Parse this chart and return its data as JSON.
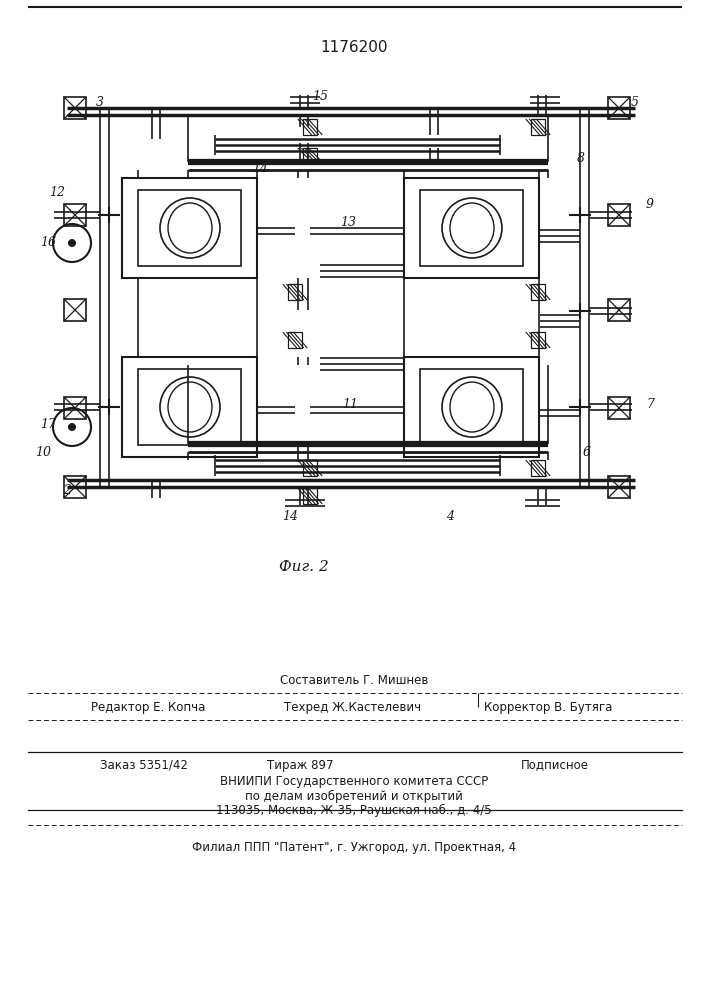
{
  "title": "1176200",
  "fig_label": "Фиг. 2",
  "bg_color": "#ffffff",
  "lc": "#1a1a1a",
  "footer": {
    "line1": "Составитель Г. Мишнев",
    "line2a": "Редактор Е. Копча",
    "line2b": "Техред Ж.Кастелевич",
    "line2c": "Корректор В. Бутяга",
    "line3a": "Заказ 5351/42",
    "line3b": "Тираж 897",
    "line3c": "Подписное",
    "line4": "ВНИИПИ Государственного комитета СССР",
    "line5": "по делам изобретений и открытий",
    "line6": "113035, Москва, Ж-35, Раушская наб., д. 4/5",
    "line7": "Филиал ППП \"Патент\", г. Ужгород, ул. Проектная, 4"
  }
}
